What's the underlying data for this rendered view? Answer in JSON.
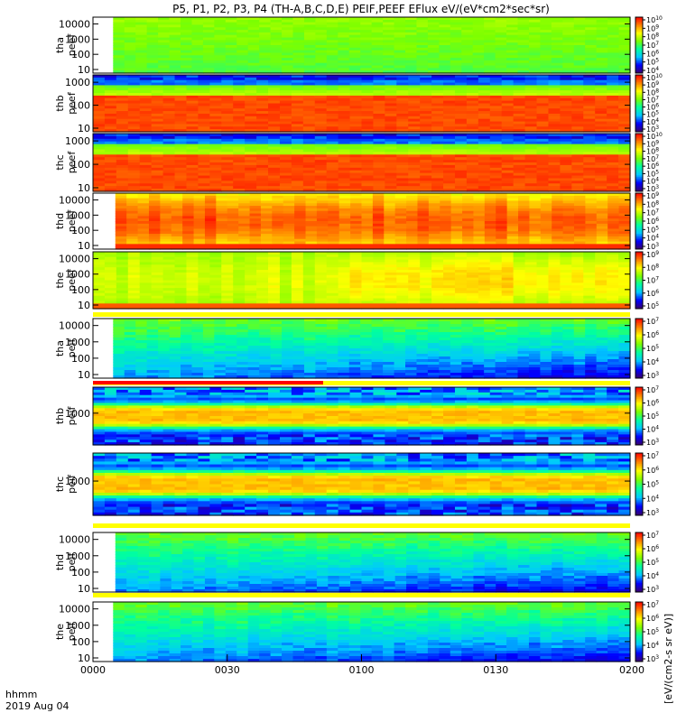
{
  "chart_data": {
    "type": "heatmap",
    "title": "P5, P1, P2, P3, P4 (TH-A,B,C,D,E) PEIF,PEEF EFlux eV/(eV*cm2*sec*sr)",
    "colorbar_unit_text": "[eV/(cm2-s sr eV)]",
    "x_axis": {
      "ticks": [
        "0000",
        "0030",
        "0100",
        "0130",
        "0200"
      ],
      "label_top": "hhmm",
      "label_bottom": "2019 Aug 04",
      "range_minutes": [
        0,
        120
      ]
    },
    "panels": [
      {
        "probe": "tha",
        "species": "peef",
        "yticks": [
          "10",
          "100",
          "1000",
          "10000"
        ],
        "data_start_min": 4.5,
        "profile": "green_high",
        "cb_exps": [
          "4",
          "5",
          "6",
          "7",
          "8",
          "9",
          "10"
        ],
        "band": false
      },
      {
        "probe": "thb",
        "species": "peef",
        "yticks": [
          "10",
          "100",
          "1000"
        ],
        "data_start_min": 0,
        "profile": "red_saturated",
        "cb_exps": [
          "3",
          "4",
          "5",
          "6",
          "7",
          "8",
          "9",
          "10"
        ],
        "band": false
      },
      {
        "probe": "thc",
        "species": "peef",
        "yticks": [
          "10",
          "100",
          "1000"
        ],
        "data_start_min": 0,
        "profile": "red_saturated_b",
        "cb_exps": [
          "3",
          "4",
          "5",
          "6",
          "7",
          "8",
          "9",
          "10"
        ],
        "band": false
      },
      {
        "probe": "thd",
        "species": "peef",
        "yticks": [
          "10",
          "100",
          "1000",
          "10000"
        ],
        "data_start_min": 5,
        "profile": "orange",
        "cb_exps": [
          "3",
          "4",
          "5",
          "6",
          "7",
          "8",
          "9"
        ],
        "band": false
      },
      {
        "probe": "the",
        "species": "peef",
        "yticks": [
          "10",
          "100",
          "1000",
          "10000"
        ],
        "data_start_min": 0,
        "profile": "yellow_orange",
        "cb_exps": [
          "5",
          "6",
          "7",
          "8",
          "9"
        ],
        "band": true
      },
      {
        "probe": "tha",
        "species": "peif",
        "yticks": [
          "10",
          "100",
          "1000",
          "10000"
        ],
        "data_start_min": 4.5,
        "profile": "cyan_green",
        "cb_exps": [
          "3",
          "4",
          "5",
          "6",
          "7"
        ],
        "band": false
      },
      {
        "probe": "thb",
        "species": "peif",
        "yticks": [
          "1000"
        ],
        "data_start_min": 0,
        "profile": "striped",
        "cb_exps": [
          "3",
          "4",
          "5",
          "6",
          "7"
        ],
        "band": true
      },
      {
        "probe": "thc",
        "species": "peif",
        "yticks": [
          "1000"
        ],
        "data_start_min": 0,
        "profile": "striped_b",
        "cb_exps": [
          "3",
          "4",
          "5",
          "6",
          "7"
        ],
        "band": true
      },
      {
        "probe": "thd",
        "species": "peif",
        "yticks": [
          "10",
          "100",
          "1000",
          "10000"
        ],
        "data_start_min": 5,
        "profile": "cyan_green_b",
        "cb_exps": [
          "3",
          "4",
          "5",
          "6",
          "7"
        ],
        "band": true
      },
      {
        "probe": "the",
        "species": "peif",
        "yticks": [
          "10",
          "100",
          "1000",
          "10000"
        ],
        "data_start_min": 4.5,
        "profile": "cyan_green_c",
        "cb_exps": [
          "3",
          "4",
          "5",
          "6",
          "7"
        ],
        "band": true
      }
    ],
    "colors": {
      "colormap": [
        "#3a006a",
        "#0000ff",
        "#00c8ff",
        "#00ffa0",
        "#7cff00",
        "#ffff00",
        "#ff8000",
        "#ff0000"
      ],
      "band_yellow": "#ffff00",
      "band_red": "#ff0000"
    }
  }
}
